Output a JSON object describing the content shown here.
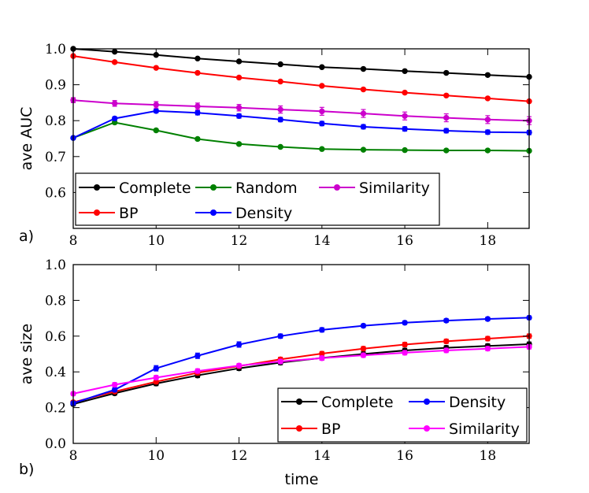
{
  "chart_data": [
    {
      "type": "line",
      "panel_label": "a)",
      "xlabel": "",
      "ylabel": "ave AUC",
      "xlim": [
        8,
        19
      ],
      "ylim": [
        0.5,
        1.0
      ],
      "xticks": [
        8,
        10,
        12,
        14,
        16,
        18
      ],
      "yticks": [
        0.6,
        0.7,
        0.8,
        0.9,
        1.0
      ],
      "xtick_labels": [
        "8",
        "10",
        "12",
        "14",
        "16",
        "18"
      ],
      "ytick_labels": [
        "0.6",
        "0.7",
        "0.8",
        "0.9",
        "1.0"
      ],
      "x": [
        8,
        9,
        10,
        11,
        12,
        13,
        14,
        15,
        16,
        17,
        18,
        19
      ],
      "legend": {
        "position": "bottom-left",
        "columns": 3
      },
      "series": [
        {
          "name": "Complete",
          "color": "#000000",
          "values": [
            1.0,
            0.992,
            0.983,
            0.973,
            0.965,
            0.957,
            0.949,
            0.944,
            0.938,
            0.933,
            0.927,
            0.922
          ],
          "errors": [
            0.001,
            0.002,
            0.002,
            0.002,
            0.002,
            0.002,
            0.002,
            0.002,
            0.002,
            0.002,
            0.002,
            0.002
          ]
        },
        {
          "name": "BP",
          "color": "#ff0000",
          "values": [
            0.98,
            0.963,
            0.947,
            0.933,
            0.92,
            0.909,
            0.897,
            0.887,
            0.878,
            0.87,
            0.862,
            0.854
          ],
          "errors": [
            0.002,
            0.002,
            0.002,
            0.002,
            0.002,
            0.002,
            0.003,
            0.003,
            0.003,
            0.003,
            0.003,
            0.003
          ]
        },
        {
          "name": "Random",
          "color": "#008000",
          "values": [
            0.752,
            0.795,
            0.773,
            0.749,
            0.735,
            0.727,
            0.721,
            0.719,
            0.718,
            0.717,
            0.717,
            0.716
          ],
          "errors": [
            0.003,
            0.004,
            0.004,
            0.004,
            0.004,
            0.003,
            0.003,
            0.003,
            0.003,
            0.003,
            0.003,
            0.003
          ]
        },
        {
          "name": "Density",
          "color": "#0000ff",
          "values": [
            0.752,
            0.806,
            0.827,
            0.822,
            0.813,
            0.803,
            0.792,
            0.783,
            0.777,
            0.772,
            0.768,
            0.767
          ],
          "errors": [
            0.003,
            0.005,
            0.005,
            0.006,
            0.006,
            0.006,
            0.006,
            0.006,
            0.006,
            0.006,
            0.006,
            0.006
          ]
        },
        {
          "name": "Similarity",
          "color": "#cc00cc",
          "values": [
            0.857,
            0.848,
            0.844,
            0.84,
            0.836,
            0.831,
            0.826,
            0.82,
            0.813,
            0.808,
            0.803,
            0.8
          ],
          "errors": [
            0.007,
            0.008,
            0.009,
            0.009,
            0.009,
            0.01,
            0.011,
            0.011,
            0.011,
            0.011,
            0.011,
            0.011
          ]
        }
      ]
    },
    {
      "type": "line",
      "panel_label": "b)",
      "xlabel": "time",
      "ylabel": "ave size",
      "xlim": [
        8,
        19
      ],
      "ylim": [
        0.0,
        1.0
      ],
      "xticks": [
        8,
        10,
        12,
        14,
        16,
        18
      ],
      "yticks": [
        0.0,
        0.2,
        0.4,
        0.6,
        0.8,
        1.0
      ],
      "xtick_labels": [
        "8",
        "10",
        "12",
        "14",
        "16",
        "18"
      ],
      "ytick_labels": [
        "0.0",
        "0.2",
        "0.4",
        "0.6",
        "0.8",
        "1.0"
      ],
      "x": [
        8,
        9,
        10,
        11,
        12,
        13,
        14,
        15,
        16,
        17,
        18,
        19
      ],
      "legend": {
        "position": "bottom-right",
        "columns": 2
      },
      "series": [
        {
          "name": "Complete",
          "color": "#000000",
          "values": [
            0.22,
            0.28,
            0.335,
            0.38,
            0.42,
            0.452,
            0.478,
            0.5,
            0.52,
            0.535,
            0.545,
            0.555
          ],
          "errors": [
            0.01,
            0.01,
            0.012,
            0.012,
            0.012,
            0.012,
            0.012,
            0.012,
            0.012,
            0.012,
            0.012,
            0.012
          ]
        },
        {
          "name": "BP",
          "color": "#ff0000",
          "values": [
            0.23,
            0.29,
            0.345,
            0.395,
            0.432,
            0.47,
            0.502,
            0.53,
            0.553,
            0.571,
            0.586,
            0.6
          ],
          "errors": [
            0.01,
            0.01,
            0.012,
            0.012,
            0.012,
            0.012,
            0.012,
            0.012,
            0.012,
            0.012,
            0.012,
            0.012
          ]
        },
        {
          "name": "Density",
          "color": "#0000ff",
          "values": [
            0.225,
            0.3,
            0.42,
            0.49,
            0.553,
            0.6,
            0.635,
            0.658,
            0.675,
            0.687,
            0.696,
            0.703
          ],
          "errors": [
            0.01,
            0.012,
            0.015,
            0.015,
            0.015,
            0.012,
            0.012,
            0.01,
            0.01,
            0.01,
            0.01,
            0.01
          ]
        },
        {
          "name": "Similarity",
          "color": "#ff00ff",
          "values": [
            0.278,
            0.328,
            0.368,
            0.405,
            0.435,
            0.458,
            0.477,
            0.493,
            0.507,
            0.52,
            0.53,
            0.54
          ],
          "errors": [
            0.01,
            0.012,
            0.012,
            0.012,
            0.012,
            0.012,
            0.012,
            0.012,
            0.012,
            0.012,
            0.012,
            0.012
          ]
        }
      ]
    }
  ]
}
